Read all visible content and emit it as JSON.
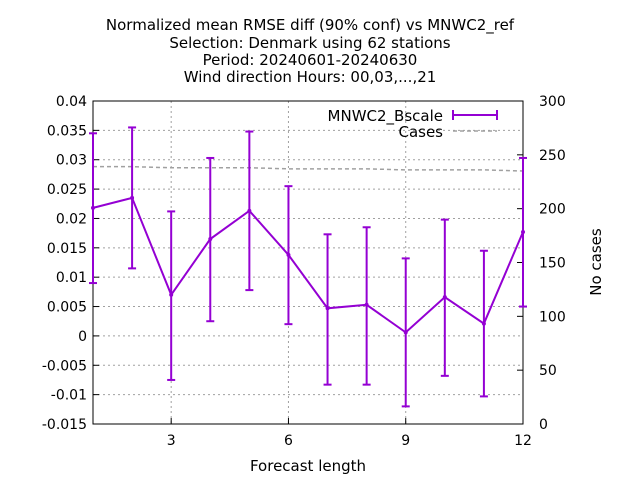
{
  "chart_data": {
    "type": "line",
    "title_lines": [
      "Normalized mean RMSE diff (90% conf) vs MNWC2_ref",
      "Selection: Denmark using    62 stations",
      "Period: 20240601-20240630",
      "Wind direction   Hours: 00,03,...,21"
    ],
    "xlabel": "Forecast length",
    "ylabel_right": "No cases",
    "xlim": [
      1,
      12
    ],
    "ylim": [
      -0.015,
      0.04
    ],
    "y2lim": [
      0,
      300
    ],
    "xticks": [
      3,
      6,
      9,
      12
    ],
    "yticks": [
      "-0.015",
      "-0.01",
      "-0.005",
      "0",
      "0.005",
      "0.01",
      "0.015",
      "0.02",
      "0.025",
      "0.03",
      "0.035",
      "0.04"
    ],
    "y2ticks": [
      "0",
      "50",
      "100",
      "150",
      "200",
      "250",
      "300"
    ],
    "grid": true,
    "legend_position": "top-right",
    "series": [
      {
        "name": "MNWC2_Bscale",
        "color": "#9400d3",
        "x": [
          1,
          2,
          3,
          4,
          5,
          6,
          7,
          8,
          9,
          10,
          11,
          12
        ],
        "y": [
          0.0218,
          0.0235,
          0.007,
          0.0165,
          0.0213,
          0.0138,
          0.0047,
          0.0053,
          0.0006,
          0.0066,
          0.0021,
          0.0177
        ],
        "err_low": [
          0.009,
          0.0115,
          -0.0075,
          0.0025,
          0.0078,
          0.002,
          -0.0083,
          -0.0083,
          -0.012,
          -0.0068,
          -0.0103,
          0.005
        ],
        "err_high": [
          0.0345,
          0.0355,
          0.0212,
          0.0303,
          0.0348,
          0.0255,
          0.0173,
          0.0185,
          0.0132,
          0.0198,
          0.0145,
          0.0303
        ]
      },
      {
        "name": "Cases",
        "color": "#a0a0a0",
        "axis": "y2",
        "x": [
          1,
          2,
          3,
          4,
          5,
          6,
          7,
          8,
          9,
          10,
          11,
          12
        ],
        "y": [
          239,
          239,
          238,
          238,
          238,
          237,
          237,
          237,
          236,
          236,
          236,
          235
        ]
      }
    ]
  }
}
